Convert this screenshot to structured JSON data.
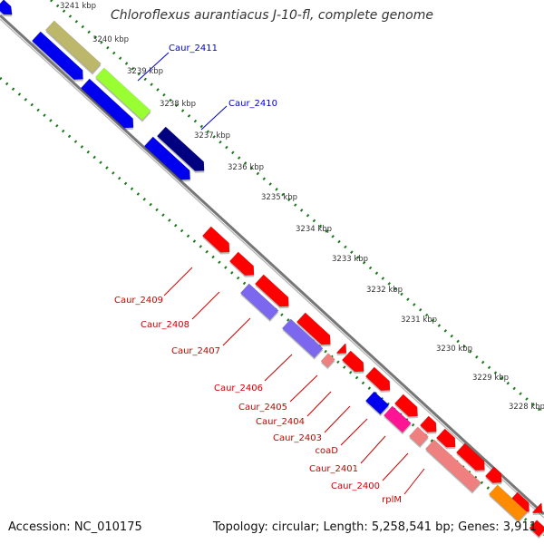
{
  "title": "Chloroflexus aurantiacus J-10-fl, complete genome",
  "footer": {
    "accession": "Accession: NC_010175",
    "summary": "Topology: circular; Length: 5,258,541 bp; Genes: 3,911"
  },
  "colors": {
    "backbone": "#888888",
    "gc_tick": "#1a7a1a",
    "blue": "#0000ee",
    "navy": "#000080",
    "khaki": "#bdb76b",
    "lime": "#99ff33",
    "red": "#ff0000",
    "slate": "#7b68ee",
    "salmon": "#f08080",
    "magenta": "#ff1493",
    "orange": "#ff8c00",
    "label_blue": "#0000cc",
    "label_red": "#cc0000"
  },
  "scale_ticks": [
    "3241 kbp",
    "3240 kbp",
    "3239 kbp",
    "3238 kbp",
    "3237 kbp",
    "3236 kbp",
    "3235 kbp",
    "3234 kbp",
    "3233 kbp",
    "3232 kbp",
    "3231 kbp",
    "3230 kbp",
    "3229 kbp",
    "3228 kbp"
  ],
  "gene_labels_upper": [
    "Caur_2411",
    "Caur_2410"
  ],
  "gene_labels_lower": [
    "Caur_2409",
    "Caur_2408",
    "Caur_2407",
    "Caur_2406",
    "Caur_2405",
    "Caur_2404",
    "Caur_2403",
    "coaD",
    "Caur_2401",
    "Caur_2400",
    "rplM"
  ]
}
